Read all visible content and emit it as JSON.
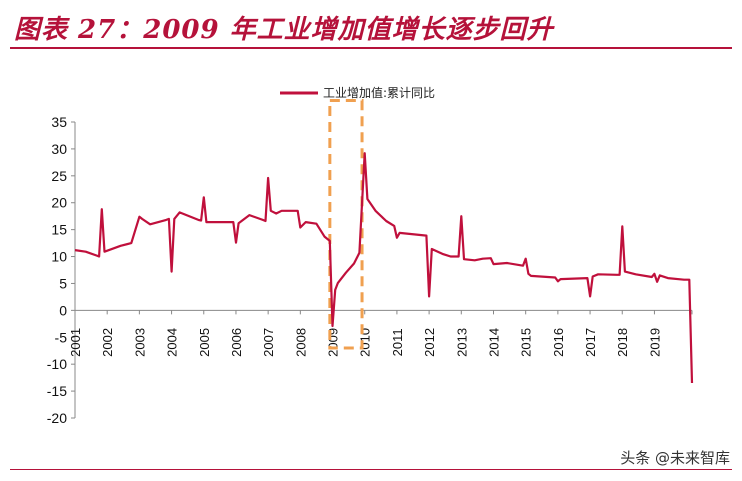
{
  "header": {
    "title": "图表 27：2009 年工业增加值增长逐步回升"
  },
  "watermark": "头条 @未来智库",
  "colors": {
    "accent": "#b5123a",
    "series": "#c0103c",
    "highlight_box": "#f0a050"
  },
  "chart_data": {
    "type": "line",
    "title": "",
    "xlabel": "",
    "ylabel": "",
    "ylim": [
      -20,
      35
    ],
    "yticks": [
      35,
      30,
      25,
      20,
      15,
      10,
      5,
      0,
      -5,
      -10,
      -15,
      -20
    ],
    "xlim": [
      "2001-01",
      "2020-03"
    ],
    "x_tick_labels": [
      "2001",
      "2002",
      "2003",
      "2004",
      "2005",
      "2006",
      "2007",
      "2008",
      "2009",
      "2010",
      "2011",
      "2012",
      "2013",
      "2014",
      "2015",
      "2016",
      "2017",
      "2018",
      "2019"
    ],
    "grid": false,
    "legend": {
      "position": "top-center",
      "entries": [
        "工业增加值:累计同比"
      ]
    },
    "highlight": {
      "x_range": [
        "2008-12",
        "2009-12"
      ],
      "y_range": [
        -7,
        39
      ]
    },
    "series": [
      {
        "name": "工业增加值:累计同比",
        "points": [
          [
            "2001-01",
            11.2
          ],
          [
            "2001-05",
            10.9
          ],
          [
            "2001-09",
            10.2
          ],
          [
            "2001-10",
            10.0
          ],
          [
            "2001-11",
            18.8
          ],
          [
            "2001-12",
            10.9
          ],
          [
            "2002-06",
            12.0
          ],
          [
            "2002-10",
            12.5
          ],
          [
            "2003-01",
            17.4
          ],
          [
            "2003-02",
            17.0
          ],
          [
            "2003-05",
            16.0
          ],
          [
            "2003-11",
            16.8
          ],
          [
            "2003-12",
            17.0
          ],
          [
            "2004-01",
            7.2
          ],
          [
            "2004-02",
            17.0
          ],
          [
            "2004-04",
            18.2
          ],
          [
            "2004-11",
            16.8
          ],
          [
            "2004-12",
            16.7
          ],
          [
            "2005-01",
            21.0
          ],
          [
            "2005-02",
            16.4
          ],
          [
            "2005-12",
            16.4
          ],
          [
            "2006-01",
            12.6
          ],
          [
            "2006-02",
            16.2
          ],
          [
            "2006-06",
            17.7
          ],
          [
            "2006-11",
            16.8
          ],
          [
            "2006-12",
            16.6
          ],
          [
            "2007-01",
            24.6
          ],
          [
            "2007-02",
            18.5
          ],
          [
            "2007-04",
            18.0
          ],
          [
            "2007-06",
            18.5
          ],
          [
            "2007-12",
            18.5
          ],
          [
            "2008-01",
            15.4
          ],
          [
            "2008-03",
            16.4
          ],
          [
            "2008-07",
            16.1
          ],
          [
            "2008-10",
            13.7
          ],
          [
            "2008-12",
            12.9
          ],
          [
            "2009-01",
            -2.9
          ],
          [
            "2009-02",
            3.8
          ],
          [
            "2009-03",
            5.1
          ],
          [
            "2009-06",
            7.0
          ],
          [
            "2009-09",
            8.7
          ],
          [
            "2009-11",
            10.7
          ],
          [
            "2010-01",
            29.2
          ],
          [
            "2010-02",
            20.7
          ],
          [
            "2010-05",
            18.5
          ],
          [
            "2010-09",
            16.6
          ],
          [
            "2010-12",
            15.7
          ],
          [
            "2011-01",
            13.5
          ],
          [
            "2011-02",
            14.4
          ],
          [
            "2011-12",
            13.9
          ],
          [
            "2012-01",
            2.6
          ],
          [
            "2012-02",
            11.4
          ],
          [
            "2012-06",
            10.5
          ],
          [
            "2012-09",
            10.0
          ],
          [
            "2012-11",
            10.0
          ],
          [
            "2012-12",
            10.0
          ],
          [
            "2013-01",
            17.5
          ],
          [
            "2013-02",
            9.5
          ],
          [
            "2013-06",
            9.3
          ],
          [
            "2013-09",
            9.6
          ],
          [
            "2013-12",
            9.7
          ],
          [
            "2014-01",
            8.6
          ],
          [
            "2014-06",
            8.8
          ],
          [
            "2014-12",
            8.3
          ],
          [
            "2015-01",
            9.6
          ],
          [
            "2015-02",
            6.8
          ],
          [
            "2015-03",
            6.4
          ],
          [
            "2015-12",
            6.1
          ],
          [
            "2016-01",
            5.4
          ],
          [
            "2016-02",
            5.8
          ],
          [
            "2016-12",
            6.0
          ],
          [
            "2017-01",
            2.6
          ],
          [
            "2017-02",
            6.3
          ],
          [
            "2017-04",
            6.7
          ],
          [
            "2017-11",
            6.6
          ],
          [
            "2017-12",
            6.6
          ],
          [
            "2018-01",
            15.6
          ],
          [
            "2018-02",
            7.2
          ],
          [
            "2018-06",
            6.7
          ],
          [
            "2018-12",
            6.2
          ],
          [
            "2019-01",
            6.8
          ],
          [
            "2019-02",
            5.3
          ],
          [
            "2019-03",
            6.5
          ],
          [
            "2019-06",
            6.0
          ],
          [
            "2019-12",
            5.7
          ],
          [
            "2020-02",
            5.7
          ],
          [
            "2020-03",
            -13.5
          ]
        ]
      }
    ]
  }
}
